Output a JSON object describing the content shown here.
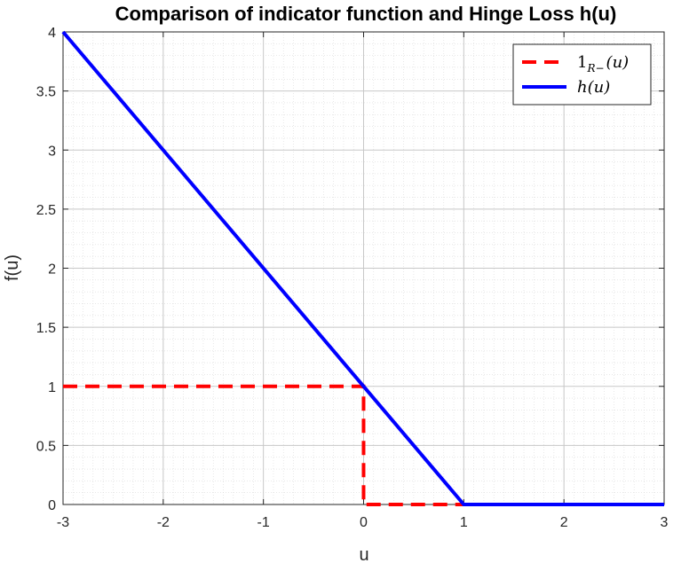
{
  "chart_data": {
    "type": "line",
    "title": "Comparison of indicator function and Hinge Loss h(u)",
    "xlabel": "u",
    "ylabel": "f(u)",
    "xlim": [
      -3,
      3
    ],
    "ylim": [
      0,
      4
    ],
    "xticks": [
      "-3",
      "-2",
      "-1",
      "0",
      "1",
      "2",
      "3"
    ],
    "yticks": [
      "0",
      "0.5",
      "1",
      "1.5",
      "2",
      "2.5",
      "3",
      "3.5",
      "4"
    ],
    "grid": true,
    "minor_grid": true,
    "legend_position": "top-right",
    "series": [
      {
        "name": "1_{R−}(u)",
        "label_main": "1",
        "label_sub": "R−",
        "label_tail": "(u)",
        "style": "dashed",
        "color": "#ff0000",
        "x": [
          -3,
          0,
          0,
          0.1,
          1
        ],
        "y": [
          1,
          1,
          0,
          0,
          0
        ]
      },
      {
        "name": "h(u)",
        "label_main": "h(u)",
        "style": "solid",
        "color": "#0000ff",
        "x": [
          -3,
          1,
          3
        ],
        "y": [
          4,
          0,
          0
        ]
      }
    ]
  }
}
